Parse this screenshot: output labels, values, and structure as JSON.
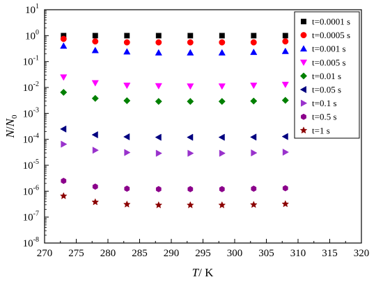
{
  "chart_data": {
    "type": "scatter",
    "xlabel_var": "T",
    "xlabel_unit": "/ K",
    "ylabel_num": "N",
    "ylabel_sep": "/",
    "ylabel_den": "N",
    "ylabel_den_sub": "0",
    "x_scale": "linear",
    "y_scale": "log",
    "xlim": [
      270,
      320
    ],
    "ylim": [
      1e-08,
      10
    ],
    "xticks": [
      270,
      275,
      280,
      285,
      290,
      295,
      300,
      305,
      310,
      315,
      320
    ],
    "yticks": [
      {
        "base": "10",
        "exp": "1"
      },
      {
        "base": "10",
        "exp": "0"
      },
      {
        "base": "10",
        "exp": "-1"
      },
      {
        "base": "10",
        "exp": "-2"
      },
      {
        "base": "10",
        "exp": "-3"
      },
      {
        "base": "10",
        "exp": "-4"
      },
      {
        "base": "10",
        "exp": "-5"
      },
      {
        "base": "10",
        "exp": "-6"
      },
      {
        "base": "10",
        "exp": "-7"
      },
      {
        "base": "10",
        "exp": "-8"
      }
    ],
    "x": [
      273,
      278,
      283,
      288,
      293,
      298,
      303,
      308
    ],
    "legend_position": "top-right",
    "series": [
      {
        "name": "t=0.0001 s",
        "color": "#000000",
        "marker": "square",
        "values": [
          1.0,
          1.0,
          1.0,
          1.0,
          1.0,
          1.0,
          1.0,
          1.0
        ]
      },
      {
        "name": "t=0.0005 s",
        "color": "#ff0000",
        "marker": "circle",
        "values": [
          0.75,
          0.6,
          0.55,
          0.55,
          0.55,
          0.55,
          0.55,
          0.6
        ]
      },
      {
        "name": "t=0.001 s",
        "color": "#0000ff",
        "marker": "triangle-up",
        "values": [
          0.4,
          0.27,
          0.24,
          0.22,
          0.22,
          0.22,
          0.23,
          0.25
        ]
      },
      {
        "name": "t=0.005 s",
        "color": "#ff00ff",
        "marker": "triangle-down",
        "values": [
          0.025,
          0.015,
          0.012,
          0.0115,
          0.0112,
          0.0112,
          0.012,
          0.013
        ]
      },
      {
        "name": "t=0.01 s",
        "color": "#008000",
        "marker": "diamond",
        "values": [
          0.0065,
          0.0038,
          0.0031,
          0.0029,
          0.0029,
          0.0029,
          0.003,
          0.0032
        ]
      },
      {
        "name": "t=0.05 s",
        "color": "#000080",
        "marker": "triangle-left",
        "values": [
          0.00025,
          0.00015,
          0.000125,
          0.00012,
          0.00012,
          0.00012,
          0.000122,
          0.000128
        ]
      },
      {
        "name": "t=0.1 s",
        "color": "#9932cc",
        "marker": "triangle-right",
        "values": [
          6.5e-05,
          3.8e-05,
          3.1e-05,
          2.9e-05,
          2.9e-05,
          2.9e-05,
          3e-05,
          3.2e-05
        ]
      },
      {
        "name": "t=0.5 s",
        "color": "#8b008b",
        "marker": "hexagon",
        "values": [
          2.5e-06,
          1.5e-06,
          1.25e-06,
          1.2e-06,
          1.2e-06,
          1.2e-06,
          1.25e-06,
          1.3e-06
        ]
      },
      {
        "name": "t=1 s",
        "color": "#8b0000",
        "marker": "star",
        "values": [
          6.5e-07,
          3.8e-07,
          3.1e-07,
          2.9e-07,
          2.9e-07,
          2.9e-07,
          3e-07,
          3.2e-07
        ]
      }
    ]
  }
}
